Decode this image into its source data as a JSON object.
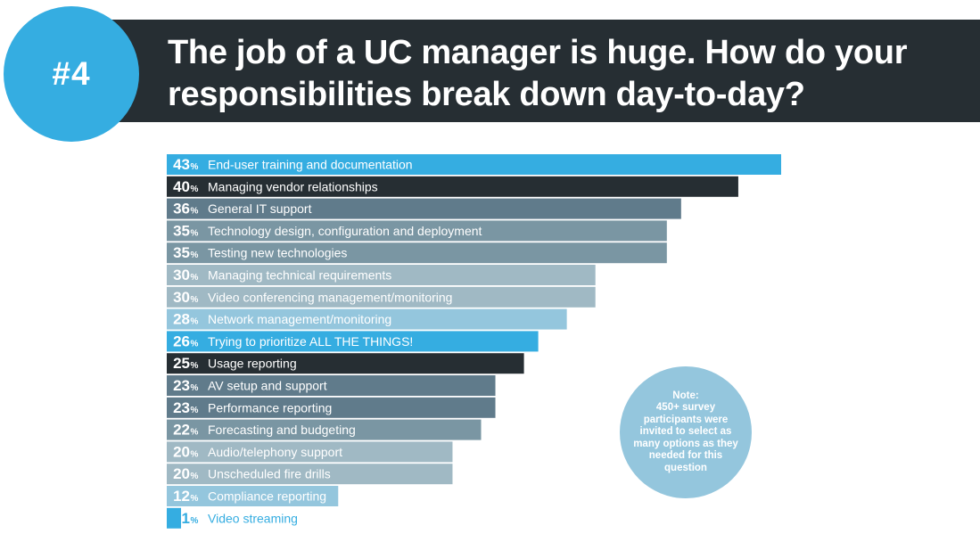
{
  "header": {
    "badge": "#4",
    "title_line1": "The job of a UC manager is huge. How do your",
    "title_line2": "responsibilities break down day-to-day?"
  },
  "note": {
    "title": "Note:",
    "body": "450+ survey participants were invited to select as many options as they needed for this question"
  },
  "chart_data": {
    "type": "bar",
    "orientation": "horizontal",
    "title": "The job of a UC manager is huge. How do your responsibilities break down day-to-day?",
    "unit": "%",
    "categories": [
      "End-user training and documentation",
      "Managing vendor relationships",
      "General IT support",
      "Technology design, configuration and deployment",
      "Testing new technologies",
      "Managing technical requirements",
      "Video conferencing management/monitoring",
      "Network management/monitoring",
      "Trying to prioritize ALL THE THINGS!",
      "Usage reporting",
      "AV setup and support",
      "Performance reporting",
      "Forecasting and budgeting",
      "Audio/telephony support",
      "Unscheduled fire drills",
      "Compliance reporting",
      "Video streaming"
    ],
    "values": [
      43,
      40,
      36,
      35,
      35,
      30,
      30,
      28,
      26,
      25,
      23,
      23,
      22,
      20,
      20,
      12,
      1
    ],
    "colors": [
      "#35ade1",
      "#262e33",
      "#607b8b",
      "#7a96a3",
      "#7a96a3",
      "#a0b9c4",
      "#a0b9c4",
      "#94c6dd",
      "#35ade1",
      "#262e33",
      "#607b8b",
      "#607b8b",
      "#7a96a3",
      "#a0b9c4",
      "#a0b9c4",
      "#94c6dd",
      "#35ade1"
    ],
    "label_color": "#ffffff",
    "overflow_label_color": "#35ade1",
    "xlim": [
      0,
      43
    ]
  }
}
